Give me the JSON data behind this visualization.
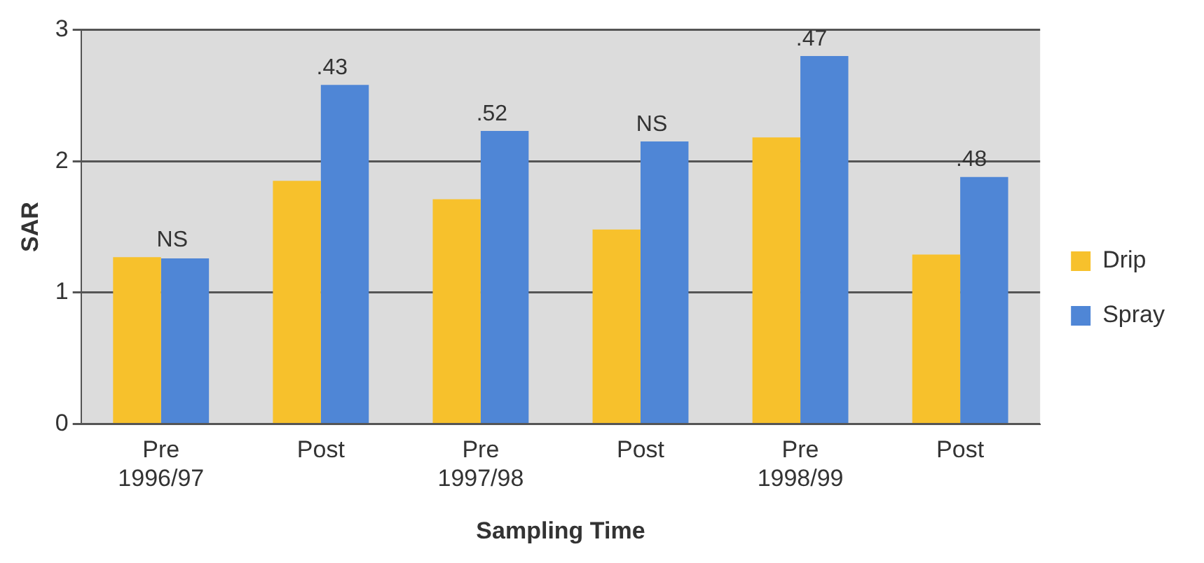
{
  "chart_data": {
    "type": "bar",
    "xlabel": "Sampling Time",
    "ylabel": "SAR",
    "categories": [
      "Pre 1996/97",
      "Post",
      "Pre 1997/98",
      "Post",
      "Pre 1998/99",
      "Post"
    ],
    "series": [
      {
        "name": "Drip",
        "color": "#f7c12c",
        "values": [
          1.27,
          1.85,
          1.71,
          1.48,
          2.18,
          1.29
        ]
      },
      {
        "name": "Spray",
        "color": "#4f86d6",
        "values": [
          1.26,
          2.58,
          2.23,
          2.15,
          2.8,
          1.88
        ]
      }
    ],
    "annotations": [
      "NS",
      ".43",
      ".52",
      "NS",
      ".47",
      ".48"
    ],
    "ylim": [
      0,
      3
    ],
    "yticks": [
      0,
      1,
      2,
      3
    ],
    "grid": "y",
    "legend": "right"
  }
}
